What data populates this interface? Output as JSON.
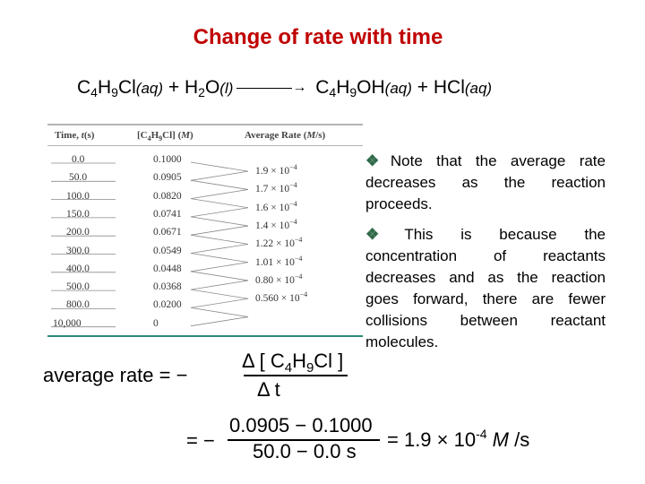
{
  "title": "Change of rate with time",
  "reaction": {
    "reactant1": "C4H9Cl(aq)",
    "plus1": "+",
    "reactant2": "H2O(l)",
    "product1": "C4H9OH(aq)",
    "plus2": "+",
    "product2": "HCl(aq)"
  },
  "table": {
    "headers": [
      "Time, t(s)",
      "[C4H9Cl] (M)",
      "Average Rate (M/s)"
    ],
    "rows": [
      {
        "time": "0.0",
        "conc": "0.1000"
      },
      {
        "time": "50.0",
        "conc": "0.0905"
      },
      {
        "time": "100.0",
        "conc": "0.0820"
      },
      {
        "time": "150.0",
        "conc": "0.0741"
      },
      {
        "time": "200.0",
        "conc": "0.0671"
      },
      {
        "time": "300.0",
        "conc": "0.0549"
      },
      {
        "time": "400.0",
        "conc": "0.0448"
      },
      {
        "time": "500.0",
        "conc": "0.0368"
      },
      {
        "time": "800.0",
        "conc": "0.0200"
      },
      {
        "time": "10,000",
        "conc": "0"
      }
    ],
    "rates": [
      {
        "mantissa": "1.9 × 10",
        "exp": "−4"
      },
      {
        "mantissa": "1.7 × 10",
        "exp": "−4"
      },
      {
        "mantissa": "1.6 × 10",
        "exp": "−4"
      },
      {
        "mantissa": "1.4 × 10",
        "exp": "−4"
      },
      {
        "mantissa": "1.22 × 10",
        "exp": "−4"
      },
      {
        "mantissa": "1.01 × 10",
        "exp": "−4"
      },
      {
        "mantissa": "0.80 × 10",
        "exp": "−4"
      },
      {
        "mantissa": "0.560 × 10",
        "exp": "−4"
      }
    ]
  },
  "notes": [
    "Note that the average rate decreases as the reaction proceeds.",
    "This is because the concentration of reactants decreases and as the reaction goes forward, there are fewer collisions between reactant molecules."
  ],
  "formula": {
    "lhs": "average rate = −",
    "numerator": "Δ [ C4H9Cl ]",
    "denominator": "Δ t",
    "calc_prefix": "= −",
    "calc_numerator": "0.0905 − 0.1000",
    "calc_denominator": "50.0 − 0.0 s",
    "result": "= 1.9 × 10-4 M /s"
  },
  "colors": {
    "title": "#c00000",
    "bullet": "#2f6a48",
    "table_rule": "#2a8a7a"
  }
}
